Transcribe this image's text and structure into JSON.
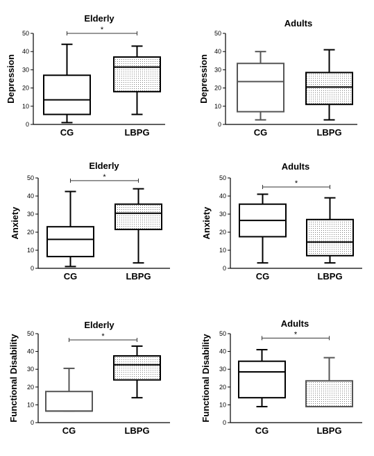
{
  "chart_data": [
    {
      "type": "box",
      "title": "Elderly",
      "ylabel": "Depression",
      "ylim": [
        0,
        50
      ],
      "yticks": [
        0,
        10,
        20,
        30,
        40,
        50
      ],
      "categories": [
        "CG",
        "LBPG"
      ],
      "boxes": [
        {
          "name": "CG",
          "min": 1,
          "q1": 5.5,
          "median": 13.5,
          "q3": 27,
          "max": 44,
          "fill": "#ffffff",
          "stroke": "#000000"
        },
        {
          "name": "LBPG",
          "min": 5.5,
          "q1": 18,
          "median": 31.5,
          "q3": 37,
          "max": 43,
          "fill": "dotted",
          "stroke": "#000000"
        }
      ],
      "significance": {
        "label": "*",
        "y": 50
      }
    },
    {
      "type": "box",
      "title": "Adults",
      "ylabel": "Depression",
      "ylim": [
        0,
        50
      ],
      "yticks": [
        0,
        10,
        20,
        30,
        40,
        50
      ],
      "categories": [
        "CG",
        "LBPG"
      ],
      "boxes": [
        {
          "name": "CG",
          "min": 2.5,
          "q1": 7,
          "median": 23.5,
          "q3": 33.5,
          "max": 40,
          "fill": "#ffffff",
          "stroke": "#555555"
        },
        {
          "name": "LBPG",
          "min": 2.5,
          "q1": 11,
          "median": 20.5,
          "q3": 28.5,
          "max": 41,
          "fill": "dotted",
          "stroke": "#000000"
        }
      ]
    },
    {
      "type": "box",
      "title": "Elderly",
      "ylabel": "Anxiety",
      "ylim": [
        0,
        50
      ],
      "yticks": [
        0,
        10,
        20,
        30,
        40,
        50
      ],
      "categories": [
        "CG",
        "LBPG"
      ],
      "boxes": [
        {
          "name": "CG",
          "min": 1,
          "q1": 6.5,
          "median": 16,
          "q3": 23,
          "max": 42.5,
          "fill": "#ffffff",
          "stroke": "#000000"
        },
        {
          "name": "LBPG",
          "min": 3,
          "q1": 21.5,
          "median": 30.5,
          "q3": 35.5,
          "max": 44,
          "fill": "dotted",
          "stroke": "#000000"
        }
      ],
      "significance": {
        "label": "*",
        "y": 48.5
      }
    },
    {
      "type": "box",
      "title": "Adults",
      "ylabel": "Anxiety",
      "ylim": [
        0,
        50
      ],
      "yticks": [
        0,
        10,
        20,
        30,
        40,
        50
      ],
      "categories": [
        "CG",
        "LBPG"
      ],
      "boxes": [
        {
          "name": "CG",
          "min": 3,
          "q1": 17.5,
          "median": 26.5,
          "q3": 35.5,
          "max": 41,
          "fill": "#ffffff",
          "stroke": "#000000"
        },
        {
          "name": "LBPG",
          "min": 3,
          "q1": 7,
          "median": 14.5,
          "q3": 27,
          "max": 39,
          "fill": "dotted",
          "stroke": "#000000"
        }
      ],
      "significance": {
        "label": "*",
        "y": 45
      }
    },
    {
      "type": "box",
      "title": "Elderly",
      "ylabel": "Functional Disability",
      "ylim": [
        0,
        50
      ],
      "yticks": [
        0,
        10,
        20,
        30,
        40,
        50
      ],
      "categories": [
        "CG",
        "LBPG"
      ],
      "boxes": [
        {
          "name": "CG",
          "min": 6.5,
          "q1": 6.5,
          "median": 6.5,
          "q3": 17.5,
          "max": 30.5,
          "fill": "#ffffff",
          "stroke": "#555555"
        },
        {
          "name": "LBPG",
          "min": 14,
          "q1": 24,
          "median": 32.5,
          "q3": 37.5,
          "max": 43,
          "fill": "dotted",
          "stroke": "#000000"
        }
      ],
      "significance": {
        "label": "*",
        "y": 46.5
      }
    },
    {
      "type": "box",
      "title": "Adults",
      "ylabel": "Functional Disability",
      "ylim": [
        0,
        50
      ],
      "yticks": [
        0,
        10,
        20,
        30,
        40,
        50
      ],
      "categories": [
        "CG",
        "LBPG"
      ],
      "boxes": [
        {
          "name": "CG",
          "min": 9,
          "q1": 14,
          "median": 28.5,
          "q3": 34.5,
          "max": 41,
          "fill": "#ffffff",
          "stroke": "#000000"
        },
        {
          "name": "LBPG",
          "min": 9,
          "q1": 9,
          "median": 9,
          "q3": 23.5,
          "max": 36.5,
          "fill": "dotted",
          "stroke": "#555555"
        }
      ],
      "significance": {
        "label": "*",
        "y": 47.5
      }
    }
  ]
}
